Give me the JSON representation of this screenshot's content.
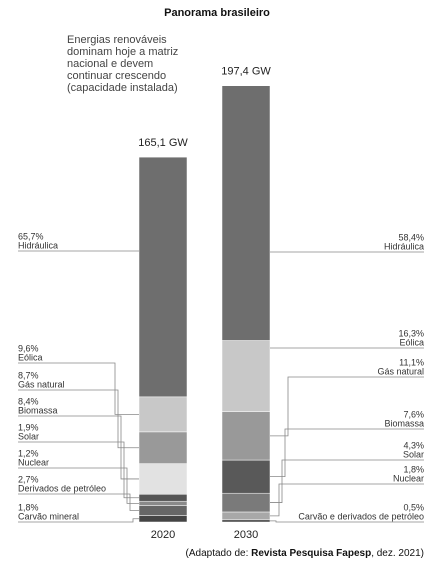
{
  "chart_data": {
    "type": "stacked-bar",
    "title": "Panorama brasileiro",
    "subtitle": [
      "Energias renováveis",
      "dominam hoje a matriz",
      "nacional e devem",
      "continuar crescendo",
      "(capacidade instalada)"
    ],
    "bars": [
      {
        "category": "2020",
        "total": 165.1,
        "total_label": "165,1 GW",
        "names": [
          "Carvão mineral",
          "Derivados de petróleo",
          "Nuclear",
          "Solar",
          "Biomassa",
          "Gás natural",
          "Eólica",
          "Hidráulica"
        ],
        "values": [
          1.8,
          2.7,
          1.2,
          1.9,
          8.4,
          8.7,
          9.6,
          65.7
        ],
        "value_labels": [
          "1,8%",
          "2,7%",
          "1,2%",
          "1,9%",
          "8,4%",
          "8,7%",
          "9,6%",
          "65,7%"
        ],
        "colors": [
          "#444444",
          "#666666",
          "#8a8a8a",
          "#555555",
          "#e2e2e2",
          "#999999",
          "#c8c8c8",
          "#6e6e6e"
        ]
      },
      {
        "category": "2030",
        "total": 197.4,
        "total_label": "197,4 GW",
        "names": [
          "Carvão e derivados de petróleo",
          "Nuclear",
          "Solar",
          "Biomassa",
          "Gás natural",
          "Eólica",
          "Hidráulica"
        ],
        "values": [
          0.5,
          1.8,
          4.3,
          7.6,
          11.1,
          16.3,
          58.4
        ],
        "value_labels": [
          "0,5%",
          "1,8%",
          "4,3%",
          "7,6%",
          "11,1%",
          "16,3%",
          "58,4%"
        ],
        "colors": [
          "#444444",
          "#a8a8a8",
          "#7a7a7a",
          "#595959",
          "#999999",
          "#c8c8c8",
          "#6e6e6e"
        ]
      }
    ],
    "source": [
      "(Adaptado de: ",
      "Revista Pesquisa Fapesp",
      ", dez. 2021)"
    ]
  }
}
